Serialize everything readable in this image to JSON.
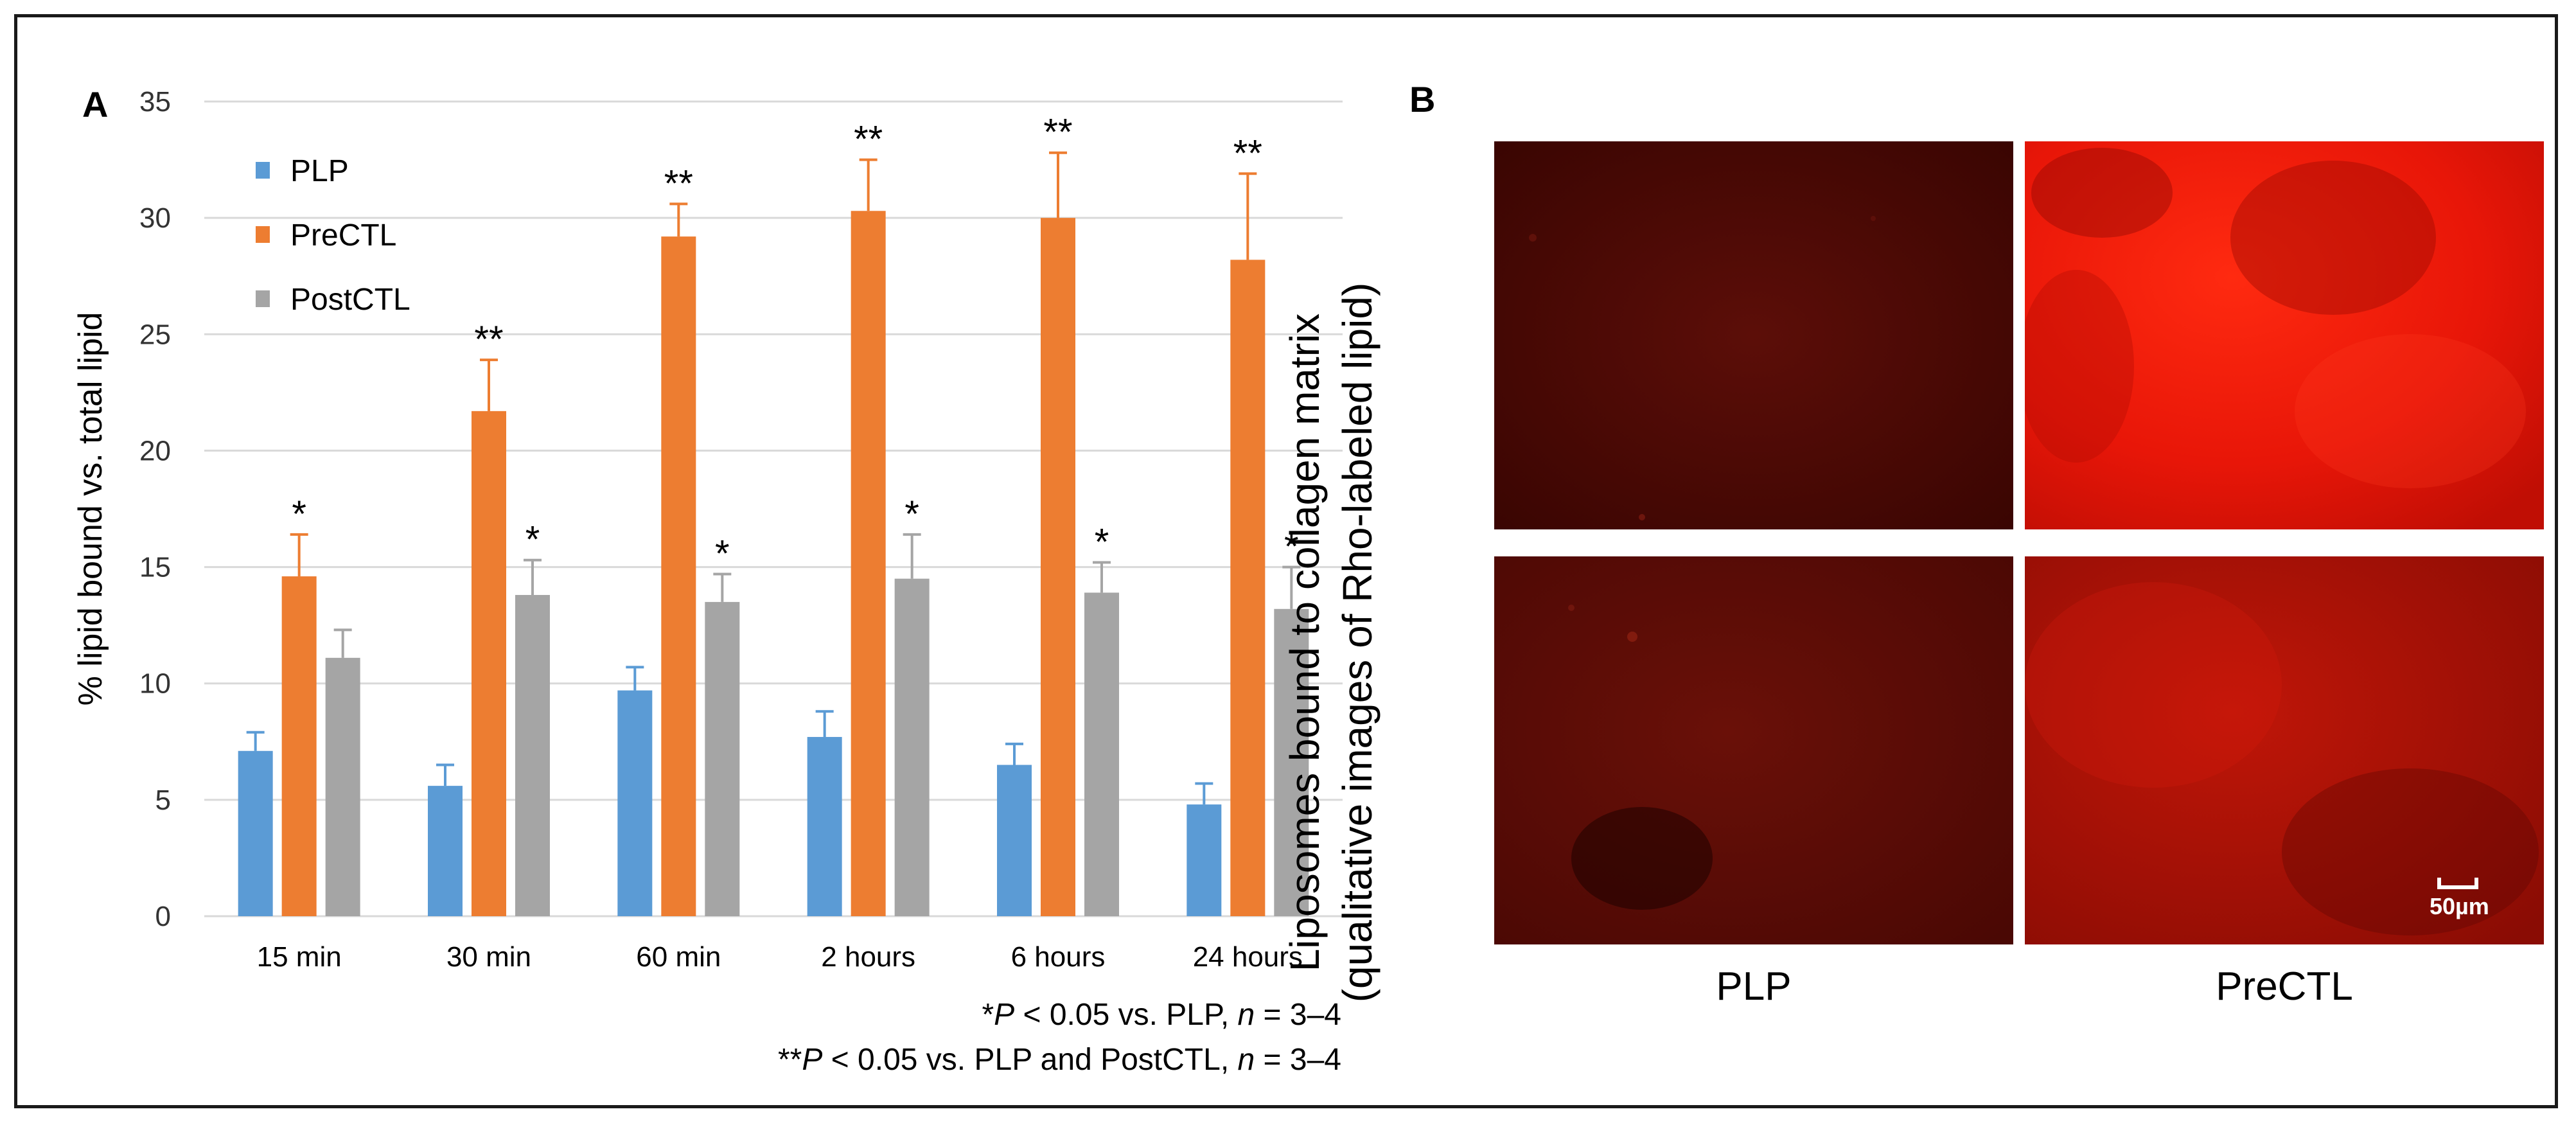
{
  "panel_a_label": "A",
  "panel_b_label": "B",
  "chart_data": {
    "type": "bar",
    "title": "",
    "xlabel": "",
    "ylabel": "% lipid bound vs. total lipid",
    "ylim": [
      0,
      35
    ],
    "yticks": [
      0,
      5,
      10,
      15,
      20,
      25,
      30,
      35
    ],
    "grid": true,
    "legend_position": "top-left",
    "categories": [
      "15 min",
      "30 min",
      "60 min",
      "2 hours",
      "6 hours",
      "24 hours"
    ],
    "series": [
      {
        "name": "PLP",
        "color": "#5b9bd5",
        "values": [
          7.1,
          5.6,
          9.7,
          7.7,
          6.5,
          4.8
        ],
        "errors": [
          0.8,
          0.9,
          1.0,
          1.1,
          0.9,
          0.9
        ],
        "markers": [
          "",
          "",
          "",
          "",
          "",
          ""
        ]
      },
      {
        "name": "PreCTL",
        "color": "#ed7d31",
        "values": [
          14.6,
          21.7,
          29.2,
          30.3,
          30.0,
          28.2
        ],
        "errors": [
          1.8,
          2.2,
          1.4,
          2.2,
          2.8,
          3.7
        ],
        "markers": [
          "*",
          "**",
          "**",
          "**",
          "**",
          "**"
        ]
      },
      {
        "name": "PostCTL",
        "color": "#a5a5a5",
        "values": [
          11.1,
          13.8,
          13.5,
          14.5,
          13.9,
          13.2
        ],
        "errors": [
          1.2,
          1.5,
          1.2,
          1.9,
          1.3,
          1.8
        ],
        "markers": [
          "",
          "*",
          "*",
          "*",
          "*",
          "*"
        ]
      }
    ],
    "footnotes": [
      {
        "prefix": "*",
        "p": "P",
        "rest": " < 0.05 vs. PLP, ",
        "n": "n",
        "tail": " = 3–4"
      },
      {
        "prefix": "**",
        "p": "P",
        "rest": " < 0.05 vs. PLP and PostCTL, ",
        "n": "n",
        "tail": " = 3–4"
      }
    ]
  },
  "panel_b": {
    "title_line1": "Liposomes bound to collagen matrix",
    "title_line2": "(qualitative images of Rho-labeled lipid)",
    "col_labels": [
      "PLP",
      "PreCTL"
    ],
    "scale_bar": "50µm"
  },
  "colors": {
    "plp": "#5b9bd5",
    "prectl": "#ed7d31",
    "postctl": "#a5a5a5",
    "gridline": "#d9d9d9",
    "frame": "#1a1a1a"
  }
}
